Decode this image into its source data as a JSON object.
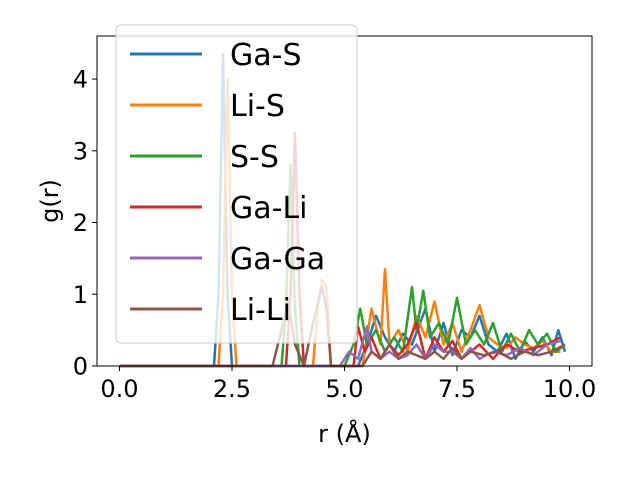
{
  "chart_data": {
    "type": "line",
    "xlabel": "r (Å)",
    "ylabel": "g(r)",
    "xlim": [
      -0.5,
      10.5
    ],
    "ylim": [
      0,
      4.6
    ],
    "xticks": [
      0.0,
      2.5,
      5.0,
      7.5,
      10.0
    ],
    "xtick_labels": [
      "0.0",
      "2.5",
      "5.0",
      "7.5",
      "10.0"
    ],
    "yticks": [
      0,
      1,
      2,
      3,
      4
    ],
    "ytick_labels": [
      "0",
      "1",
      "2",
      "3",
      "4"
    ],
    "grid": false,
    "legend_position": "upper-left",
    "series": [
      {
        "name": "Ga-S",
        "color": "#1f77b4",
        "points": [
          [
            0,
            0
          ],
          [
            2.1,
            0
          ],
          [
            2.2,
            1.0
          ],
          [
            2.3,
            4.35
          ],
          [
            2.4,
            1.0
          ],
          [
            2.5,
            0
          ],
          [
            5.3,
            0
          ],
          [
            5.5,
            0.3
          ],
          [
            5.7,
            0.7
          ],
          [
            5.9,
            0.4
          ],
          [
            6.1,
            0.2
          ],
          [
            6.3,
            0.45
          ],
          [
            6.5,
            0.3
          ],
          [
            6.8,
            0.8
          ],
          [
            7.0,
            0.2
          ],
          [
            7.2,
            0.6
          ],
          [
            7.4,
            0.15
          ],
          [
            7.6,
            0.5
          ],
          [
            7.8,
            0.4
          ],
          [
            8.0,
            0.7
          ],
          [
            8.2,
            0.3
          ],
          [
            8.4,
            0.2
          ],
          [
            8.6,
            0.45
          ],
          [
            8.8,
            0.1
          ],
          [
            9.0,
            0.35
          ],
          [
            9.2,
            0.2
          ],
          [
            9.4,
            0.4
          ],
          [
            9.6,
            0.15
          ],
          [
            9.75,
            0.5
          ],
          [
            9.9,
            0.2
          ]
        ]
      },
      {
        "name": "Li-S",
        "color": "#ff7f0e",
        "points": [
          [
            0,
            0
          ],
          [
            2.2,
            0
          ],
          [
            2.3,
            1.0
          ],
          [
            2.4,
            4.0
          ],
          [
            2.5,
            1.0
          ],
          [
            2.6,
            0
          ],
          [
            4.3,
            0
          ],
          [
            4.4,
            0.8
          ],
          [
            4.5,
            1.2
          ],
          [
            4.6,
            1.1
          ],
          [
            4.7,
            0
          ],
          [
            5.4,
            0
          ],
          [
            5.6,
            0.8
          ],
          [
            5.8,
            0.3
          ],
          [
            5.9,
            1.35
          ],
          [
            6.0,
            0.3
          ],
          [
            6.2,
            0.5
          ],
          [
            6.4,
            0.2
          ],
          [
            6.6,
            0.7
          ],
          [
            6.8,
            0.4
          ],
          [
            7.0,
            0.9
          ],
          [
            7.2,
            0.3
          ],
          [
            7.4,
            0.6
          ],
          [
            7.6,
            0.2
          ],
          [
            7.8,
            0.5
          ],
          [
            8.0,
            0.85
          ],
          [
            8.2,
            0.4
          ],
          [
            8.4,
            0.3
          ],
          [
            8.6,
            0.25
          ],
          [
            8.8,
            0.4
          ],
          [
            9.0,
            0.3
          ],
          [
            9.2,
            0.25
          ],
          [
            9.4,
            0.35
          ],
          [
            9.6,
            0.2
          ],
          [
            9.8,
            0.2
          ]
        ]
      },
      {
        "name": "S-S",
        "color": "#2ca02c",
        "points": [
          [
            0,
            0
          ],
          [
            3.6,
            0
          ],
          [
            3.7,
            0.8
          ],
          [
            3.8,
            2.8
          ],
          [
            3.9,
            0.8
          ],
          [
            4.0,
            0
          ],
          [
            5.0,
            0
          ],
          [
            5.2,
            0.3
          ],
          [
            5.35,
            0.8
          ],
          [
            5.5,
            0.3
          ],
          [
            5.7,
            0.5
          ],
          [
            5.9,
            0.2
          ],
          [
            6.1,
            0.4
          ],
          [
            6.3,
            0.2
          ],
          [
            6.5,
            1.1
          ],
          [
            6.6,
            0.5
          ],
          [
            6.75,
            1.05
          ],
          [
            6.9,
            0.4
          ],
          [
            7.1,
            0.6
          ],
          [
            7.3,
            0.3
          ],
          [
            7.5,
            0.95
          ],
          [
            7.7,
            0.3
          ],
          [
            7.9,
            0.5
          ],
          [
            8.1,
            0.3
          ],
          [
            8.3,
            0.6
          ],
          [
            8.5,
            0.2
          ],
          [
            8.7,
            0.45
          ],
          [
            8.9,
            0.2
          ],
          [
            9.1,
            0.5
          ],
          [
            9.3,
            0.3
          ],
          [
            9.5,
            0.45
          ],
          [
            9.7,
            0.2
          ],
          [
            9.9,
            0.3
          ]
        ]
      },
      {
        "name": "Ga-Li",
        "color": "#d62728",
        "points": [
          [
            0,
            0
          ],
          [
            3.7,
            0
          ],
          [
            3.8,
            1.0
          ],
          [
            3.9,
            3.25
          ],
          [
            4.0,
            1.0
          ],
          [
            4.1,
            0
          ],
          [
            5.2,
            0
          ],
          [
            5.3,
            0.55
          ],
          [
            5.45,
            0.2
          ],
          [
            5.6,
            0.4
          ],
          [
            5.8,
            0.1
          ],
          [
            6.0,
            0.3
          ],
          [
            6.2,
            0.15
          ],
          [
            6.4,
            0.3
          ],
          [
            6.6,
            0.6
          ],
          [
            6.8,
            0.1
          ],
          [
            7.0,
            0.4
          ],
          [
            7.2,
            0.2
          ],
          [
            7.4,
            0.35
          ],
          [
            7.6,
            0.1
          ],
          [
            7.8,
            0.2
          ],
          [
            8.0,
            0.3
          ],
          [
            8.3,
            0.1
          ],
          [
            8.6,
            0.3
          ],
          [
            8.9,
            0.2
          ],
          [
            9.2,
            0.25
          ],
          [
            9.5,
            0.3
          ],
          [
            9.8,
            0.4
          ]
        ]
      },
      {
        "name": "Ga-Ga",
        "color": "#9467bd",
        "points": [
          [
            0,
            0
          ],
          [
            4.9,
            0
          ],
          [
            5.1,
            0.2
          ],
          [
            5.3,
            0.1
          ],
          [
            5.5,
            0.55
          ],
          [
            5.6,
            0.2
          ],
          [
            5.8,
            0.1
          ],
          [
            6.0,
            0.2
          ],
          [
            6.2,
            0.1
          ],
          [
            6.4,
            0.15
          ],
          [
            6.6,
            0.3
          ],
          [
            6.8,
            0.1
          ],
          [
            7.0,
            0.3
          ],
          [
            7.2,
            0.2
          ],
          [
            7.4,
            0.2
          ],
          [
            7.6,
            0.1
          ],
          [
            7.8,
            0.25
          ],
          [
            8.0,
            0.1
          ],
          [
            8.3,
            0.2
          ],
          [
            8.6,
            0.15
          ],
          [
            8.9,
            0.25
          ],
          [
            9.2,
            0.15
          ],
          [
            9.5,
            0.3
          ],
          [
            9.8,
            0.35
          ]
        ]
      },
      {
        "name": "Li-Li",
        "color": "#8c564b",
        "points": [
          [
            0,
            0
          ],
          [
            3.4,
            0
          ],
          [
            3.6,
            0.5
          ],
          [
            3.75,
            0.9
          ],
          [
            3.9,
            0.3
          ],
          [
            4.1,
            0
          ],
          [
            4.3,
            0.6
          ],
          [
            4.5,
            1.1
          ],
          [
            4.6,
            0.8
          ],
          [
            4.7,
            0
          ],
          [
            5.4,
            0
          ],
          [
            5.6,
            0.2
          ],
          [
            5.8,
            0.1
          ],
          [
            6.0,
            0.3
          ],
          [
            6.2,
            0.1
          ],
          [
            6.4,
            0.2
          ],
          [
            6.6,
            0.15
          ],
          [
            6.8,
            0.1
          ],
          [
            7.0,
            0.2
          ],
          [
            7.2,
            0.1
          ],
          [
            7.4,
            0.25
          ],
          [
            7.6,
            0.1
          ],
          [
            7.8,
            0.2
          ],
          [
            8.1,
            0.15
          ],
          [
            8.4,
            0.2
          ],
          [
            8.7,
            0.1
          ],
          [
            9.0,
            0.2
          ],
          [
            9.3,
            0.15
          ],
          [
            9.6,
            0.2
          ],
          [
            9.9,
            0.3
          ]
        ]
      }
    ]
  }
}
